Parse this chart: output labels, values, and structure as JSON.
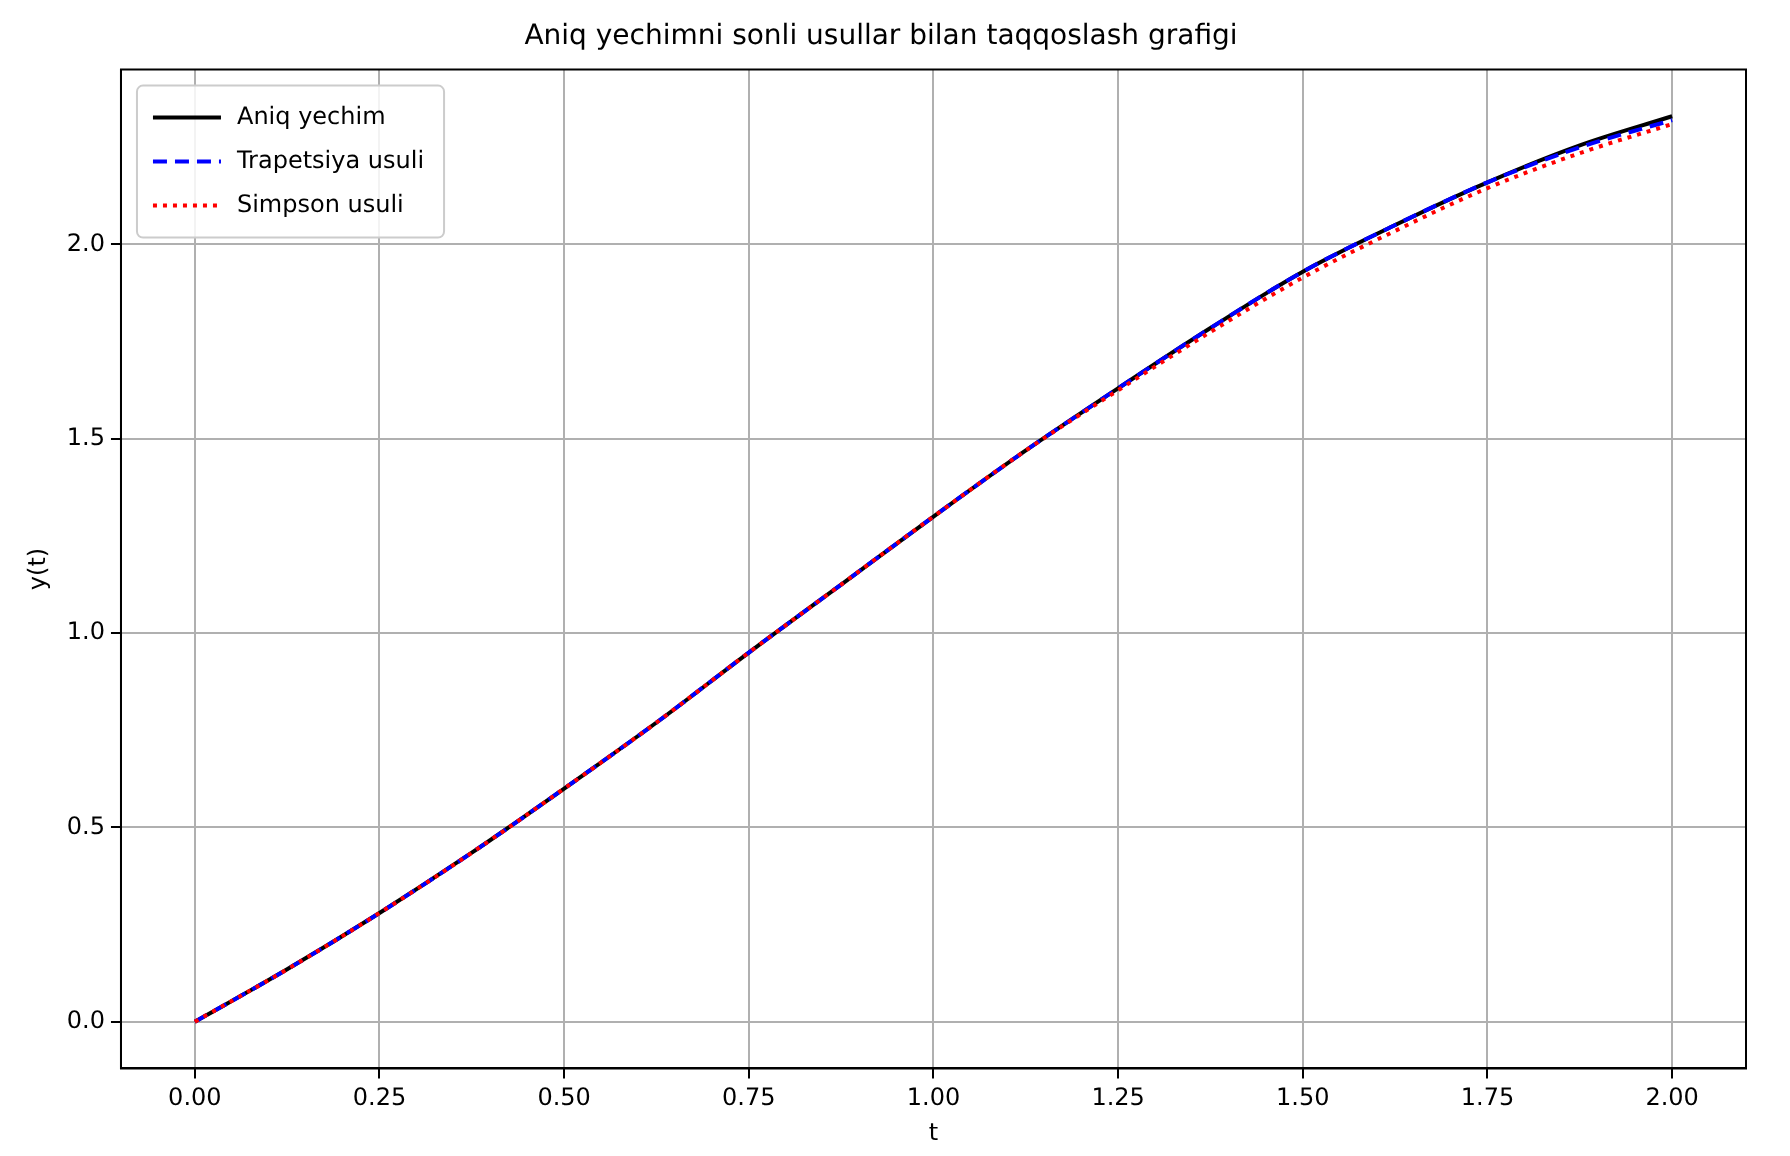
{
  "chart_data": {
    "type": "line",
    "title": "Aniq yechimni sonli usullar bilan taqqoslash grafigi",
    "xlabel": "t",
    "ylabel": "y(t)",
    "x": [
      0,
      0.125,
      0.25,
      0.375,
      0.5,
      0.625,
      0.75,
      0.875,
      1,
      1.125,
      1.25,
      1.375,
      1.5,
      1.625,
      1.75,
      1.875,
      2
    ],
    "series": [
      {
        "name": "Aniq yechim",
        "color": "#000000",
        "line_style": "solid",
        "values": [
          0,
          0.135,
          0.28,
          0.435,
          0.6,
          0.77,
          0.95,
          1.125,
          1.3,
          1.47,
          1.63,
          1.785,
          1.93,
          2.05,
          2.16,
          2.255,
          2.33
        ]
      },
      {
        "name": "Trapetsiya usuli",
        "color": "#0000ff",
        "line_style": "dashed",
        "values": [
          0,
          0.135,
          0.28,
          0.435,
          0.6,
          0.77,
          0.95,
          1.125,
          1.3,
          1.47,
          1.63,
          1.785,
          1.93,
          2.05,
          2.16,
          2.25,
          2.32
        ]
      },
      {
        "name": "Simpson usuli",
        "color": "#ff0000",
        "line_style": "dotted",
        "values": [
          0,
          0.135,
          0.28,
          0.435,
          0.6,
          0.77,
          0.95,
          1.125,
          1.3,
          1.47,
          1.625,
          1.775,
          1.915,
          2.035,
          2.145,
          2.235,
          2.31
        ]
      }
    ],
    "xlim": [
      -0.1,
      2.1
    ],
    "xticks": [
      {
        "value": 0,
        "label": "0.00"
      },
      0.25,
      {
        "value": 0.5,
        "label": "0.50"
      },
      0.75,
      {
        "value": 1,
        "label": "1.00"
      },
      1.25,
      {
        "value": 1.5,
        "label": "1.50"
      },
      1.75,
      {
        "value": 2,
        "label": "2.00"
      }
    ],
    "ylim": [
      -0.12,
      2.45
    ],
    "yticks": [
      {
        "value": 0,
        "label": "0.0"
      },
      0.5,
      {
        "value": 1,
        "label": "1.0"
      },
      1.5,
      {
        "value": 2,
        "label": "2.0"
      }
    ],
    "grid": true,
    "legend": "top left",
    "marker": "none"
  }
}
